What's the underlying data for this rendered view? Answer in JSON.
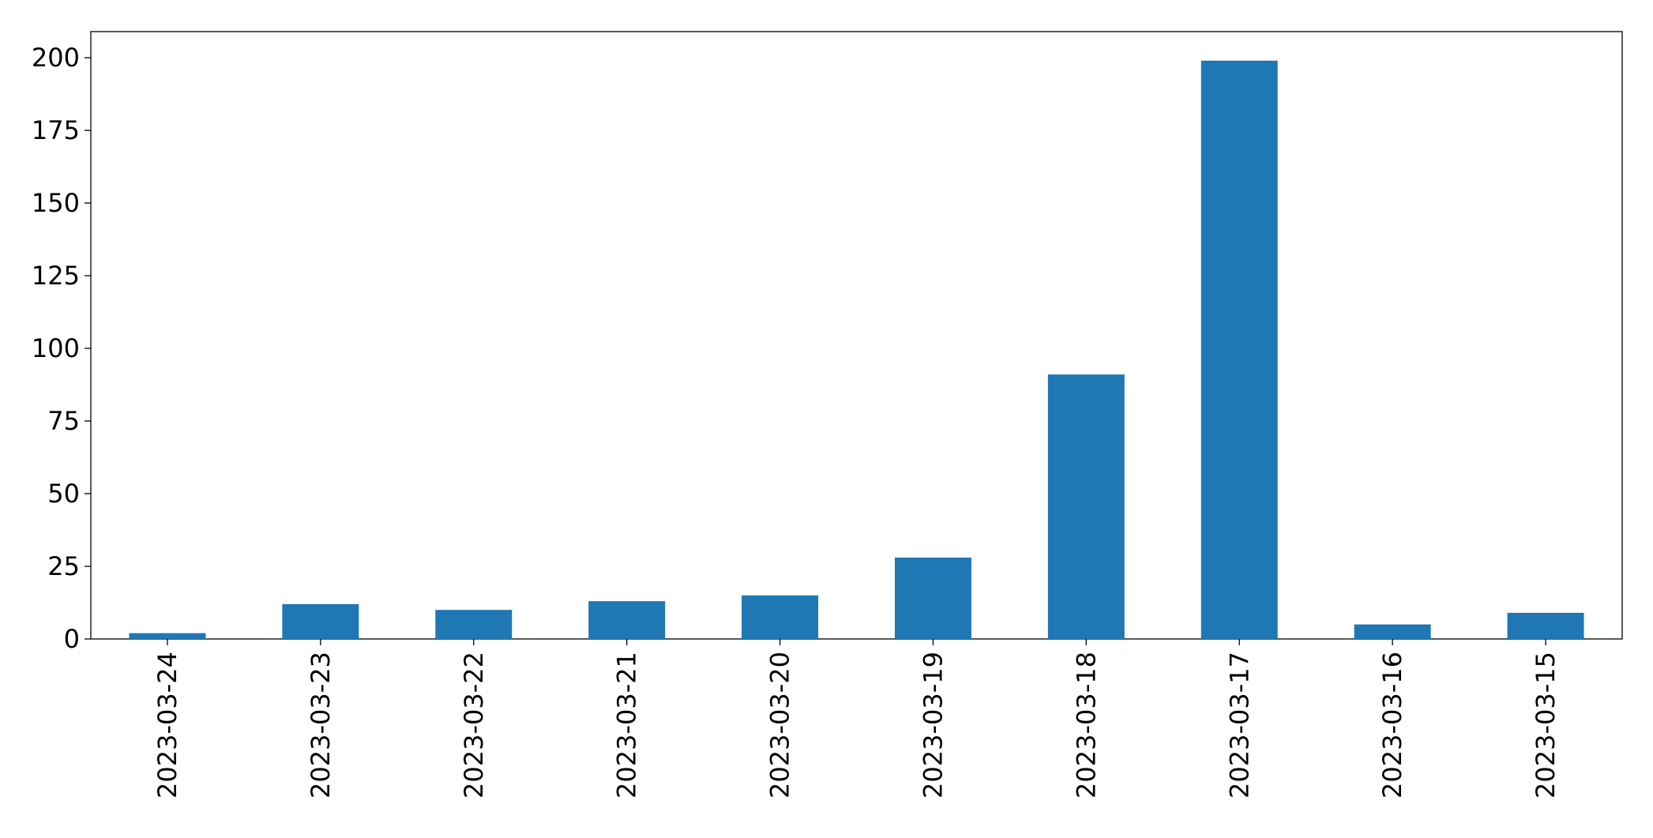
{
  "chart_data": {
    "type": "bar",
    "categories": [
      "2023-03-24",
      "2023-03-23",
      "2023-03-22",
      "2023-03-21",
      "2023-03-20",
      "2023-03-19",
      "2023-03-18",
      "2023-03-17",
      "2023-03-16",
      "2023-03-15"
    ],
    "values": [
      2,
      12,
      10,
      13,
      15,
      28,
      91,
      199,
      5,
      9
    ],
    "color": "#1f77b4",
    "ylim": [
      0,
      209
    ],
    "yticks": [
      0,
      25,
      50,
      75,
      100,
      125,
      150,
      175,
      200
    ],
    "grid": false
  }
}
